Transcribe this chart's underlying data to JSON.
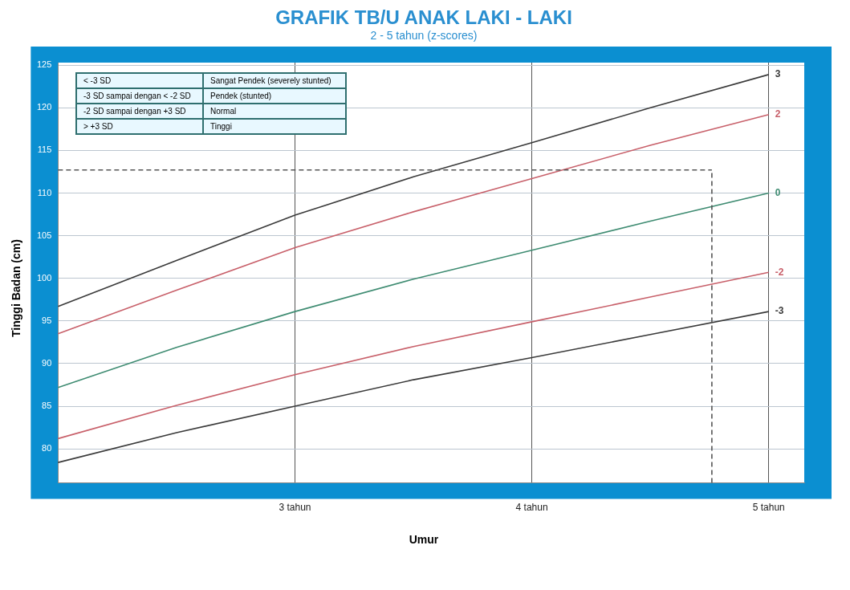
{
  "chart_data": {
    "type": "line",
    "title": "GRAFIK TB/U ANAK LAKI - LAKI",
    "subtitle": "2 - 5 tahun (z-scores)",
    "xlabel": "Umur",
    "ylabel": "Tinggi Badan (cm)",
    "annotations": [
      "< -3 SD",
      "Sangat Pendek (severely stunted)",
      "-3 SD sampai dengan < -2 SD",
      "Pendek (stunted)",
      "-2 SD sampai dengan +3 SD",
      "Normal",
      "> +3 SD",
      "Tinggi"
    ],
    "x": [
      2,
      2.5,
      3,
      3.5,
      4,
      4.5,
      5
    ],
    "xlim": [
      2,
      5.15
    ],
    "xticks": [
      {
        "value": 3,
        "label": "3 tahun"
      },
      {
        "value": 4,
        "label": "4 tahun"
      },
      {
        "value": 5,
        "label": "5 tahun"
      }
    ],
    "ylim": [
      76,
      125.3
    ],
    "yticks": [
      80,
      85,
      90,
      95,
      100,
      105,
      110,
      115,
      120,
      125
    ],
    "grid": true,
    "legend": false,
    "marker": "none",
    "line_style": "solid",
    "series": [
      {
        "name": "3",
        "color": "#3a3a3a",
        "values": [
          96.7,
          102.1,
          107.4,
          111.9,
          115.9,
          120.0,
          123.9
        ]
      },
      {
        "name": "2",
        "color": "#c8606a",
        "values": [
          93.5,
          98.6,
          103.6,
          107.8,
          111.7,
          115.6,
          119.2
        ]
      },
      {
        "name": "0",
        "color": "#3f8c72",
        "values": [
          87.2,
          91.9,
          96.1,
          99.9,
          103.3,
          106.7,
          110.0
        ]
      },
      {
        "name": "-2",
        "color": "#c8606a",
        "values": [
          81.2,
          85.1,
          88.7,
          92.0,
          94.9,
          97.8,
          100.7
        ]
      },
      {
        "name": "-3",
        "color": "#3a3a3a",
        "values": [
          78.4,
          81.9,
          85.0,
          88.1,
          90.7,
          93.4,
          96.1
        ]
      }
    ],
    "ref_lines": [
      {
        "axis": "y",
        "value": 112.7,
        "color": "#555555",
        "line_style": "dashed"
      },
      {
        "axis": "x",
        "value": 4.76,
        "color": "#555555",
        "line_style": "dashed"
      }
    ]
  }
}
